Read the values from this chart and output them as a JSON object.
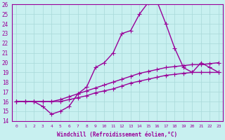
{
  "xlabel": "Windchill (Refroidissement éolien,°C)",
  "xlim": [
    -0.5,
    23.5
  ],
  "ylim": [
    14,
    26
  ],
  "yticks": [
    14,
    15,
    16,
    17,
    18,
    19,
    20,
    21,
    22,
    23,
    24,
    25,
    26
  ],
  "xticks": [
    0,
    1,
    2,
    3,
    4,
    5,
    6,
    7,
    8,
    9,
    10,
    11,
    12,
    13,
    14,
    15,
    16,
    17,
    18,
    19,
    20,
    21,
    22,
    23
  ],
  "bg_color": "#c8f0f0",
  "grid_color": "#a8d8d8",
  "line_color": "#990099",
  "line_width": 1.0,
  "marker_size": 4,
  "curves": [
    {
      "x": [
        0,
        1,
        2,
        3,
        4,
        5,
        6,
        7,
        8,
        9,
        10,
        11,
        12,
        13,
        14,
        15,
        16,
        17,
        18,
        19,
        20,
        21,
        22,
        23
      ],
      "y": [
        16.0,
        16.0,
        16.0,
        16.0,
        16.0,
        16.2,
        16.5,
        16.8,
        17.1,
        17.4,
        17.7,
        18.0,
        18.3,
        18.6,
        18.9,
        19.1,
        19.3,
        19.5,
        19.6,
        19.7,
        19.8,
        19.8,
        19.9,
        20.0
      ]
    },
    {
      "x": [
        0,
        1,
        2,
        3,
        4,
        5,
        6,
        7,
        8,
        9,
        10,
        11,
        12,
        13,
        14,
        15,
        16,
        17,
        18,
        19,
        20,
        21,
        22,
        23
      ],
      "y": [
        16.0,
        16.0,
        16.0,
        16.0,
        16.0,
        16.0,
        16.2,
        16.4,
        16.6,
        16.9,
        17.1,
        17.3,
        17.6,
        17.9,
        18.1,
        18.3,
        18.5,
        18.7,
        18.8,
        18.9,
        19.0,
        19.0,
        19.0,
        19.0
      ]
    },
    {
      "x": [
        0,
        1,
        2,
        3,
        4,
        5,
        6,
        7,
        8,
        9,
        10,
        11,
        12,
        13,
        14,
        15,
        16,
        17,
        18,
        19,
        20,
        21,
        22,
        23
      ],
      "y": [
        16.0,
        16.0,
        16.0,
        15.5,
        14.7,
        15.0,
        15.5,
        16.8,
        17.5,
        19.5,
        20.0,
        21.0,
        23.0,
        23.3,
        25.0,
        26.2,
        26.3,
        24.0,
        21.5,
        19.5,
        19.0,
        20.0,
        19.5,
        19.0
      ]
    }
  ]
}
